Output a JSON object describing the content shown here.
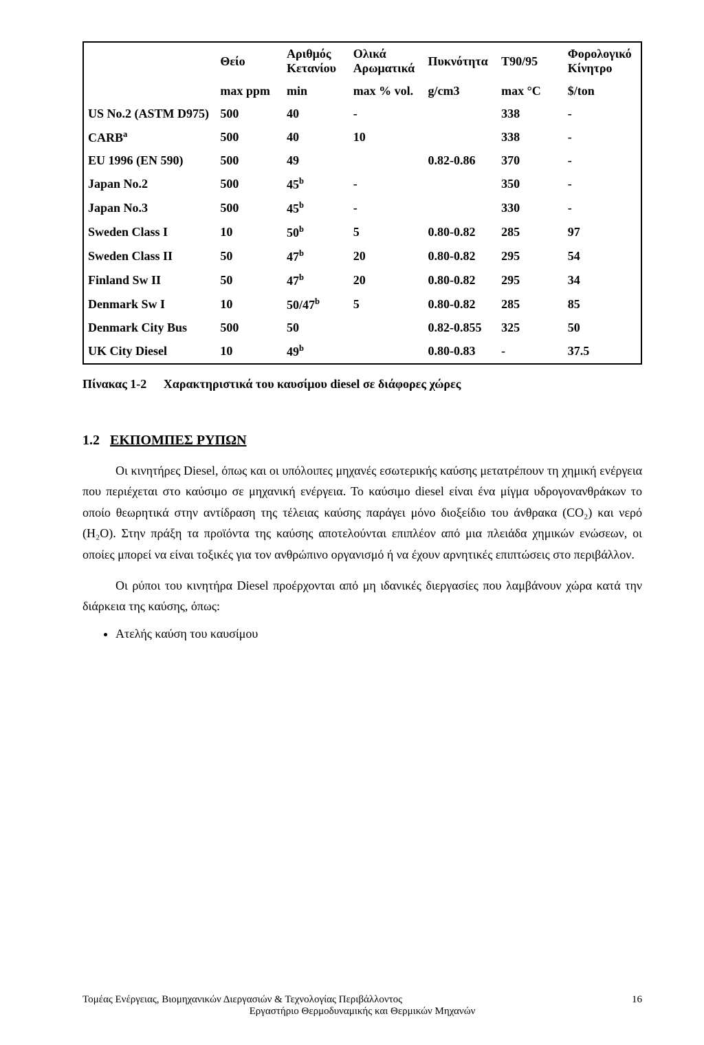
{
  "table": {
    "headers": [
      "",
      "Θείο",
      "Αριθμός Κετανίου",
      "Ολικά Αρωματικά",
      "Πυκνότητα",
      "T90/95",
      "Φορολογικό Κίνητρο"
    ],
    "units": [
      "",
      "max ppm",
      "min",
      "max % vol.",
      "g/cm3",
      "max °C",
      "$/ton"
    ],
    "rows": [
      {
        "label": "US No.2 (ASTM D975)",
        "sup": "",
        "c": [
          "500",
          "40",
          "-",
          "",
          "338",
          "-"
        ]
      },
      {
        "label": "CARB",
        "sup": "a",
        "c": [
          "500",
          "40",
          "10",
          "",
          "338",
          "-"
        ]
      },
      {
        "label": "EU 1996 (EN 590)",
        "sup": "",
        "c": [
          "500",
          "49",
          "",
          "0.82-0.86",
          "370",
          "-"
        ]
      },
      {
        "label": "Japan No.2",
        "sup": "",
        "c": [
          "500",
          "45",
          "-",
          "",
          "350",
          "-"
        ],
        "bsup": [
          0,
          1,
          0,
          0,
          0,
          0
        ]
      },
      {
        "label": "Japan No.3",
        "sup": "",
        "c": [
          "500",
          "45",
          "-",
          "",
          "330",
          "-"
        ],
        "bsup": [
          0,
          1,
          0,
          0,
          0,
          0
        ]
      },
      {
        "label": "Sweden Class I",
        "sup": "",
        "c": [
          "10",
          "50",
          "5",
          "0.80-0.82",
          "285",
          "97"
        ],
        "bsup": [
          0,
          1,
          0,
          0,
          0,
          0
        ]
      },
      {
        "label": "Sweden Class II",
        "sup": "",
        "c": [
          "50",
          "47",
          "20",
          "0.80-0.82",
          "295",
          "54"
        ],
        "bsup": [
          0,
          1,
          0,
          0,
          0,
          0
        ]
      },
      {
        "label": "Finland Sw II",
        "sup": "",
        "c": [
          "50",
          "47",
          "20",
          "0.80-0.82",
          "295",
          "34"
        ],
        "bsup": [
          0,
          1,
          0,
          0,
          0,
          0
        ]
      },
      {
        "label": "Denmark Sw I",
        "sup": "",
        "c": [
          "10",
          "50/47",
          "5",
          "0.80-0.82",
          "285",
          "85"
        ],
        "bsup": [
          0,
          1,
          0,
          0,
          0,
          0
        ]
      },
      {
        "label": "Denmark City Bus",
        "sup": "",
        "c": [
          "500",
          "50",
          "",
          "0.82-0.855",
          "325",
          "50"
        ]
      },
      {
        "label": "UK City Diesel",
        "sup": "",
        "c": [
          "10",
          "49",
          "",
          "0.80-0.83",
          "-",
          "37.5"
        ],
        "bsup": [
          0,
          1,
          0,
          0,
          0,
          0
        ]
      }
    ]
  },
  "caption": {
    "label": "Πίνακας 1-2",
    "text": "Χαρακτηριστικά του καυσίμου diesel σε διάφορες χώρες"
  },
  "section": {
    "num": "1.2",
    "title": "ΕΚΠΟΜΠΕΣ ΡΥΠΩΝ"
  },
  "paragraphs": [
    "Οι κινητήρες Diesel, όπως και οι υπόλοιπες μηχανές εσωτερικής καύσης μετατρέπουν τη χημική ενέργεια που περιέχεται στο καύσιμο σε μηχανική ενέργεια. Το καύσιμο diesel είναι ένα μίγμα υδρογονανθράκων το οποίο θεωρητικά στην αντίδραση της τέλειας καύσης παράγει μόνο διοξείδιο του άνθρακα (CO₂) και νερό (H₂O). Στην πράξη τα προϊόντα της καύσης αποτελούνται επιπλέον από μια πλειάδα χημικών ενώσεων, οι οποίες μπορεί να είναι τοξικές για τον ανθρώπινο οργανισμό ή να έχουν αρνητικές επιπτώσεις στο περιβάλλον.",
    "Οι ρύποι του κινητήρα Diesel προέρχονται από μη ιδανικές διεργασίες που λαμβάνουν χώρα κατά την διάρκεια της καύσης, όπως:"
  ],
  "bullets": [
    "Ατελής καύση του καυσίμου"
  ],
  "footer": {
    "line1_left": "Τομέας Ενέργειας, Βιομηχανικών Διεργασιών & Τεχνολογίας Περιβάλλοντος",
    "line1_right": "16",
    "line2": "Εργαστήριο Θερμοδυναμικής και Θερμικών Μηχανών"
  },
  "colors": {
    "text": "#000000",
    "background": "#ffffff",
    "border": "#000000"
  }
}
